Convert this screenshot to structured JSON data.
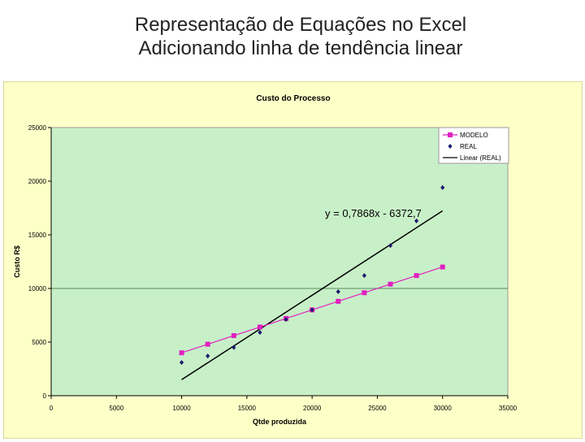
{
  "slide": {
    "title_line1": "Representação de Equações no Excel",
    "title_line2": "Adicionando linha de tendência linear"
  },
  "colors": {
    "chart_background": "#ffffc8",
    "plot_background": "#c8f0c8",
    "modelo_series": "#e020c0",
    "real_series": "#1a1a6e",
    "trendline": "#000000"
  },
  "chart_data": {
    "type": "scatter",
    "title": "Custo do Processo",
    "xlabel": "Qtde produzida",
    "ylabel": "Custo R$",
    "xlim": [
      0,
      35000
    ],
    "ylim": [
      0,
      25000
    ],
    "x_ticks": [
      "0",
      "5000",
      "10000",
      "15000",
      "20000",
      "25000",
      "30000",
      "35000"
    ],
    "y_ticks": [
      "0",
      "5000",
      "10000",
      "15000",
      "20000",
      "25000"
    ],
    "legend_position": "top-right",
    "series": [
      {
        "name": "MODELO",
        "marker": "square",
        "line": true,
        "x": [
          10000,
          12000,
          14000,
          16000,
          18000,
          20000,
          22000,
          24000,
          26000,
          28000,
          30000
        ],
        "y": [
          4000,
          4800,
          5600,
          6400,
          7200,
          8000,
          8800,
          9600,
          10400,
          11200,
          12000
        ]
      },
      {
        "name": "REAL",
        "marker": "diamond",
        "line": false,
        "x": [
          10000,
          12000,
          14000,
          16000,
          18000,
          20000,
          22000,
          24000,
          26000,
          28000,
          30000
        ],
        "y": [
          3100,
          3700,
          4500,
          5900,
          7100,
          8000,
          9700,
          11200,
          14000,
          16300,
          19400
        ]
      }
    ],
    "trendline": {
      "name": "Linear (REAL)",
      "slope": 0.7868,
      "intercept": -6372.7,
      "x_range": [
        10000,
        30000
      ],
      "equation_label": "y = 0,7868x - 6372,7"
    }
  }
}
